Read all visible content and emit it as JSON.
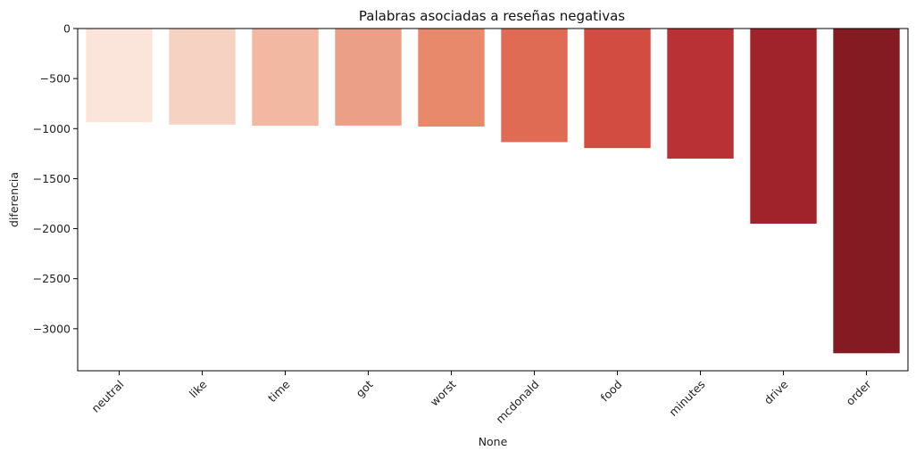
{
  "chart_data": {
    "type": "bar",
    "title": "Palabras asociadas a reseñas negativas",
    "xlabel": "None",
    "ylabel": "diferencia",
    "categories": [
      "neutral",
      "like",
      "time",
      "got",
      "worst",
      "mcdonald",
      "food",
      "minutes",
      "drive",
      "order"
    ],
    "values": [
      -935,
      -960,
      -972,
      -970,
      -980,
      -1135,
      -1195,
      -1300,
      -1950,
      -3245
    ],
    "ylim": [
      -3420,
      0
    ],
    "yticks": [
      0,
      -500,
      -1000,
      -1500,
      -2000,
      -2500,
      -3000
    ],
    "ytick_labels": [
      "0",
      "−500",
      "−1000",
      "−1500",
      "−2000",
      "−2500",
      "−3000"
    ],
    "colors": [
      "#fbe4da",
      "#f6d2c2",
      "#f2b8a1",
      "#eb9f87",
      "#e8896b",
      "#e06b54",
      "#d24c42",
      "#b93134",
      "#a0222a",
      "#841b22"
    ],
    "grid": false,
    "legend": "none"
  }
}
